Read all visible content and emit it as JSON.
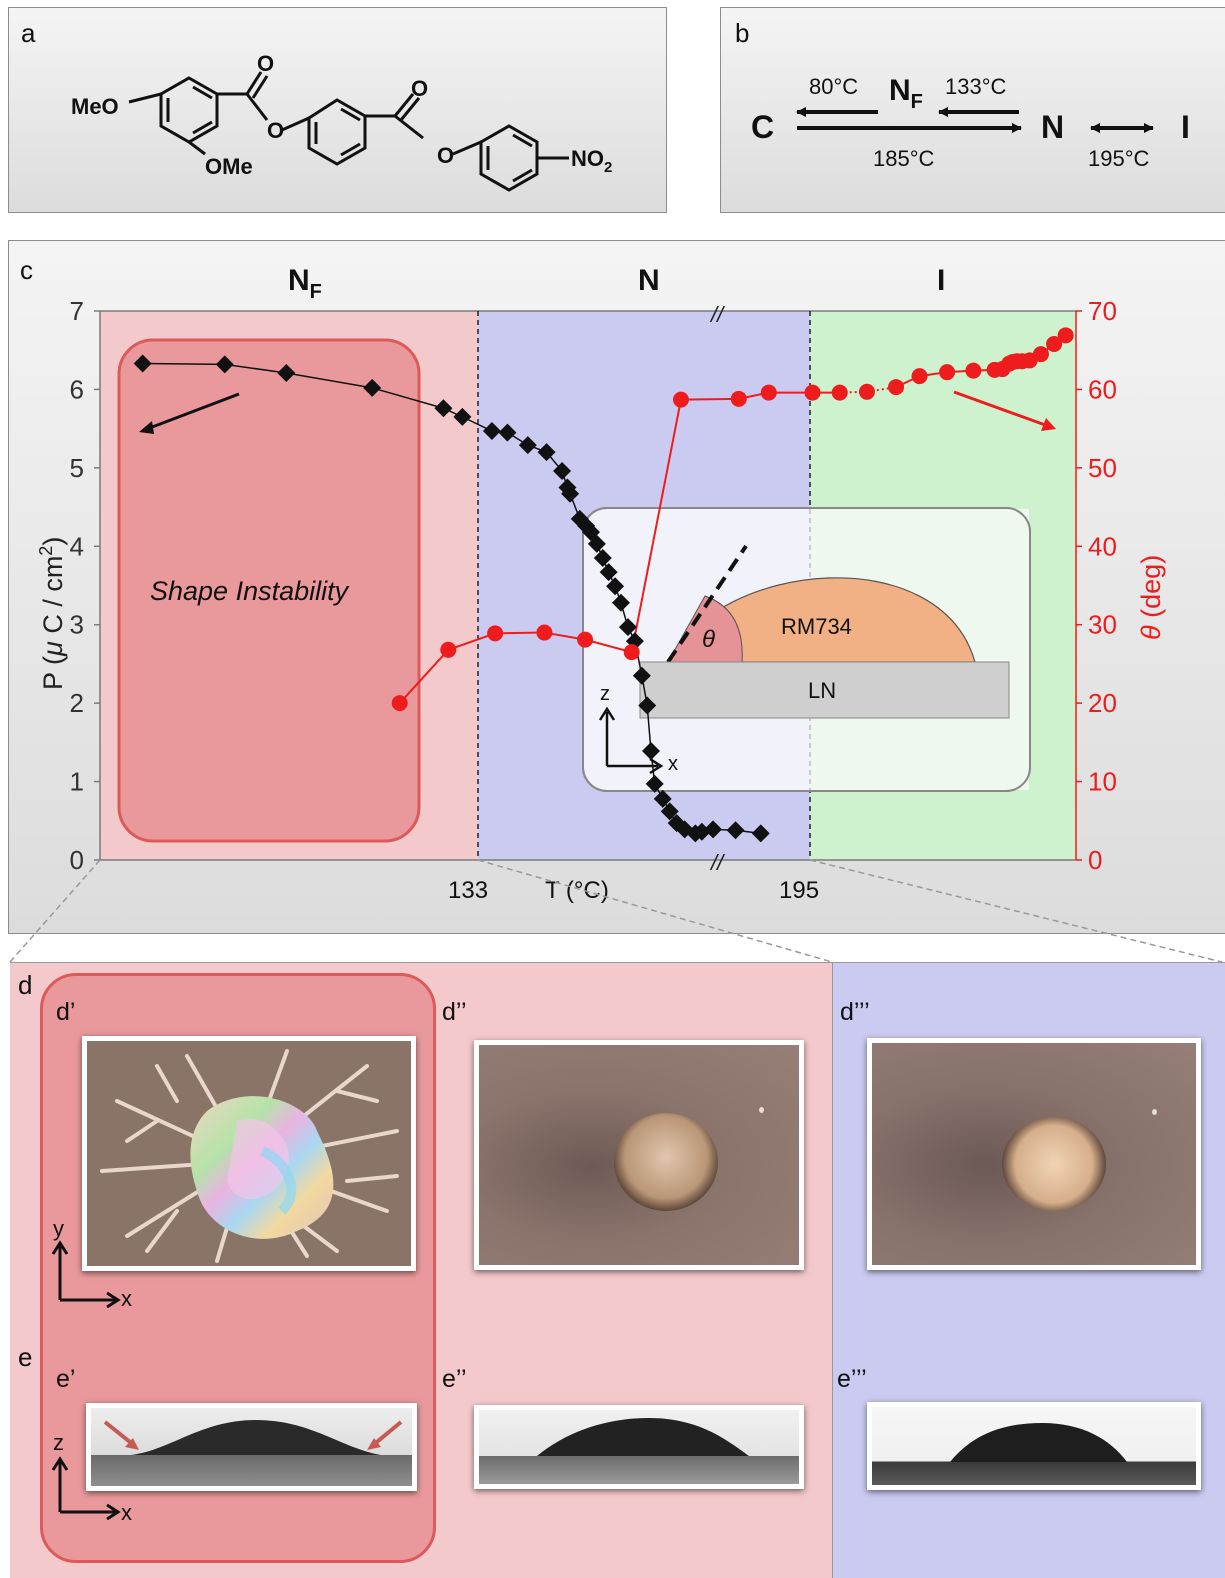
{
  "panels": {
    "a": {
      "label": "a",
      "substituents": {
        "meo": "MeO",
        "ome": "OMe",
        "nitro": "NO",
        "nitro_sub": "2",
        "o1": "O",
        "o2": "O",
        "o3": "O",
        "o4": "O"
      }
    },
    "b": {
      "label": "b",
      "phases": {
        "c": "C",
        "nf": "N",
        "nf_sub": "F",
        "n": "N",
        "i": "I"
      },
      "temps": {
        "cool_c": "80°C",
        "cool_nf": "133°C",
        "heat_cn": "185°C",
        "ni": "195°C"
      }
    },
    "c": {
      "label": "c",
      "regions": [
        "N",
        "N",
        "I"
      ],
      "region_nf_sub": "F",
      "break_mark": "//",
      "annotation": "Shape Instability",
      "inset": {
        "theta": "θ",
        "drop": "RM734",
        "substrate": "LN",
        "axis_z": "z",
        "axis_x": "x"
      }
    },
    "d": {
      "label": "d",
      "subs": [
        "d’",
        "d’’",
        "d’’’"
      ],
      "axis_y": "y",
      "axis_x": "x"
    },
    "e": {
      "label": "e",
      "subs": [
        "e’",
        "e’’",
        "e’’’"
      ],
      "axis_z": "z",
      "axis_x": "x"
    }
  },
  "colors": {
    "nf_region": "#f4c9cb",
    "n_region": "#cbcbf2",
    "i_region": "#cdf2cd",
    "instability_box": "#e9999b",
    "theta_series": "#ee1c1c",
    "p_series": "#111111"
  },
  "chart_data": {
    "type": "scatter",
    "xlabel": "T (°C)",
    "x_ticks": [
      "133",
      "195"
    ],
    "ylabel": "P (μ C / cm²)",
    "ylabel_parts": {
      "p": "P (",
      "mu": "μ",
      "unit": " C / cm",
      "sup": "2",
      "close": ")"
    },
    "y_ticks": [
      "0",
      "1",
      "2",
      "3",
      "4",
      "5",
      "6",
      "7"
    ],
    "ylim": [
      0,
      7
    ],
    "y2label": "θ (deg)",
    "y2label_parts": {
      "theta": "θ",
      "unit": " (deg)"
    },
    "y2_ticks": [
      "0",
      "10",
      "20",
      "30",
      "40",
      "50",
      "60",
      "70"
    ],
    "y2lim": [
      0,
      70
    ],
    "axis_break": "between 133 and 195",
    "series": [
      {
        "axis": "left",
        "marker": "diamond",
        "color": "#111111",
        "points": [
          [
            70.9,
            6.33
          ],
          [
            86.1,
            6.32
          ],
          [
            97.5,
            6.21
          ],
          [
            113.4,
            6.02
          ],
          [
            126.6,
            5.76
          ],
          [
            130.1,
            5.65
          ],
          [
            135.6,
            5.47
          ],
          [
            138.5,
            5.45
          ],
          [
            142.3,
            5.29
          ],
          [
            145.8,
            5.2
          ],
          [
            148.7,
            4.96
          ],
          [
            149.7,
            4.75
          ],
          [
            150.2,
            4.67
          ],
          [
            152.0,
            4.35
          ],
          [
            153.2,
            4.26
          ],
          [
            154.1,
            4.18
          ],
          [
            155.2,
            4.03
          ],
          [
            156.3,
            3.85
          ],
          [
            157.4,
            3.67
          ],
          [
            158.6,
            3.49
          ],
          [
            159.7,
            3.28
          ],
          [
            161.0,
            2.97
          ],
          [
            162.3,
            2.79
          ],
          [
            163.6,
            2.35
          ],
          [
            164.6,
            1.97
          ],
          [
            165.3,
            1.39
          ],
          [
            166.0,
            0.97
          ],
          [
            167.5,
            0.78
          ],
          [
            168.8,
            0.62
          ],
          [
            170.1,
            0.47
          ],
          [
            171.6,
            0.39
          ],
          [
            173.6,
            0.34
          ],
          [
            174.8,
            0.36
          ],
          [
            176.9,
            0.39
          ],
          [
            181.1,
            0.38
          ],
          [
            185.8,
            0.34
          ]
        ]
      },
      {
        "axis": "right",
        "marker": "circle",
        "color": "#ee1c1c",
        "points": [
          [
            118.5,
            20.0
          ],
          [
            127.5,
            26.8
          ],
          [
            136.2,
            28.9
          ],
          [
            145.4,
            29.0
          ],
          [
            153.0,
            28.1
          ],
          [
            161.7,
            26.5
          ],
          [
            170.9,
            58.7
          ],
          [
            181.7,
            58.8
          ],
          [
            187.3,
            59.6
          ],
          [
            195.8,
            59.6
          ],
          [
            204.5,
            59.6
          ],
          [
            213.2,
            59.7
          ],
          [
            222.5,
            60.3
          ],
          [
            230.0,
            61.7
          ],
          [
            238.8,
            62.2
          ],
          [
            247.2,
            62.4
          ],
          [
            254.0,
            62.5
          ],
          [
            256.5,
            62.6
          ],
          [
            258.7,
            63.3
          ],
          [
            259.8,
            63.5
          ],
          [
            261.1,
            63.6
          ],
          [
            262.8,
            63.6
          ],
          [
            265.2,
            63.7
          ],
          [
            268.8,
            64.5
          ],
          [
            273.0,
            65.8
          ],
          [
            276.7,
            66.9
          ]
        ]
      }
    ]
  }
}
